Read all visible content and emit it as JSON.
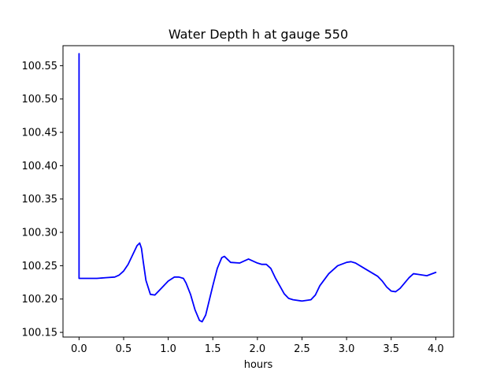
{
  "chart_data": {
    "type": "line",
    "title": "Water Depth h at gauge 550",
    "xlabel": "hours",
    "ylabel": "",
    "xlim": [
      -0.18,
      4.2
    ],
    "ylim": [
      100.143,
      100.58
    ],
    "xticks": [
      0.0,
      0.5,
      1.0,
      1.5,
      2.0,
      2.5,
      3.0,
      3.5,
      4.0
    ],
    "xtick_labels": [
      "0.0",
      "0.5",
      "1.0",
      "1.5",
      "2.0",
      "2.5",
      "3.0",
      "3.5",
      "4.0"
    ],
    "yticks": [
      100.15,
      100.2,
      100.25,
      100.3,
      100.35,
      100.4,
      100.45,
      100.5,
      100.55
    ],
    "ytick_labels": [
      "100.15",
      "100.20",
      "100.25",
      "100.30",
      "100.35",
      "100.40",
      "100.45",
      "100.50",
      "100.55"
    ],
    "grid": false,
    "series": [
      {
        "color": "#0000ff",
        "x": [
          0.0,
          0.0,
          0.1,
          0.2,
          0.3,
          0.4,
          0.45,
          0.5,
          0.55,
          0.6,
          0.65,
          0.68,
          0.7,
          0.72,
          0.75,
          0.8,
          0.85,
          0.9,
          1.0,
          1.07,
          1.12,
          1.17,
          1.2,
          1.25,
          1.3,
          1.35,
          1.38,
          1.42,
          1.5,
          1.55,
          1.6,
          1.63,
          1.7,
          1.8,
          1.9,
          2.0,
          2.05,
          2.1,
          2.15,
          2.2,
          2.3,
          2.35,
          2.4,
          2.5,
          2.6,
          2.65,
          2.7,
          2.8,
          2.9,
          3.0,
          3.05,
          3.1,
          3.2,
          3.3,
          3.35,
          3.4,
          3.45,
          3.5,
          3.55,
          3.6,
          3.7,
          3.75,
          3.8,
          3.9,
          4.0
        ],
        "y": [
          100.568,
          100.231,
          100.231,
          100.231,
          100.232,
          100.233,
          100.236,
          100.242,
          100.252,
          100.266,
          100.28,
          100.284,
          100.276,
          100.256,
          100.228,
          100.207,
          100.206,
          100.213,
          100.227,
          100.233,
          100.233,
          100.231,
          100.224,
          100.207,
          100.184,
          100.168,
          100.166,
          100.176,
          100.22,
          100.246,
          100.262,
          100.264,
          100.255,
          100.254,
          100.26,
          100.254,
          100.252,
          100.252,
          100.246,
          100.232,
          100.208,
          100.201,
          100.199,
          100.197,
          100.199,
          100.206,
          100.22,
          100.238,
          100.25,
          100.255,
          100.256,
          100.254,
          100.246,
          100.238,
          100.234,
          100.227,
          100.218,
          100.212,
          100.211,
          100.216,
          100.232,
          100.238,
          100.237,
          100.235,
          100.24
        ]
      }
    ]
  }
}
